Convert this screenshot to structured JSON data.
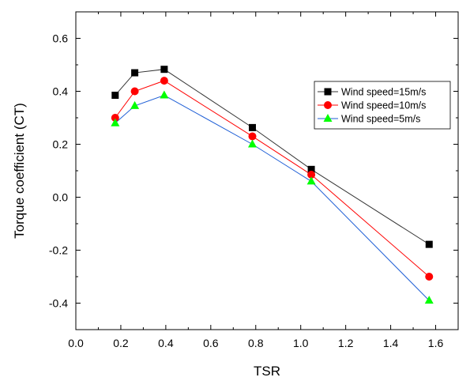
{
  "chart_data": {
    "type": "line",
    "title": "",
    "xlabel": "TSR",
    "ylabel": "Torque coefficient (CT)",
    "xlim": [
      0.0,
      1.7
    ],
    "ylim": [
      -0.5,
      0.7
    ],
    "x_ticks": [
      "0.0",
      "0.2",
      "0.4",
      "0.6",
      "0.8",
      "1.0",
      "1.2",
      "1.4",
      "1.6"
    ],
    "y_ticks": [
      "-0.4",
      "-0.2",
      "0.0",
      "0.2",
      "0.4",
      "0.6"
    ],
    "grid": false,
    "legend_position": "top-right",
    "x": [
      0.175,
      0.262,
      0.393,
      0.785,
      1.047,
      1.571
    ],
    "series": [
      {
        "name": "Wind speed=15m/s",
        "values": [
          0.385,
          0.47,
          0.483,
          0.263,
          0.105,
          -0.178
        ],
        "color": "#000000",
        "line_color": "#333333",
        "marker": "square"
      },
      {
        "name": "Wind speed=10m/s",
        "values": [
          0.3,
          0.4,
          0.44,
          0.23,
          0.085,
          -0.3
        ],
        "color": "#ff0000",
        "line_color": "#ff0000",
        "marker": "circle"
      },
      {
        "name": "Wind speed=5m/s",
        "values": [
          0.28,
          0.345,
          0.385,
          0.2,
          0.06,
          -0.39
        ],
        "color": "#00ff00",
        "line_color": "#1f5fd6",
        "marker": "triangle"
      }
    ]
  }
}
